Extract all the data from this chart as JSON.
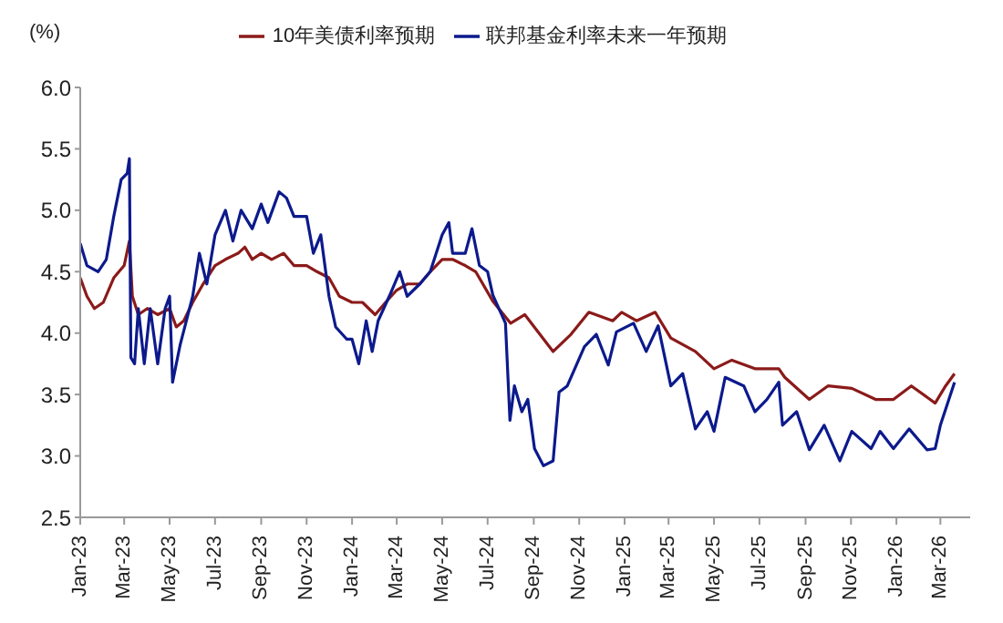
{
  "chart_data": {
    "type": "line",
    "ylabel": "(%)",
    "legend": "top",
    "line_style": "solid",
    "marker": "none",
    "xlim": [
      "2023-01-01",
      "2026-04-10"
    ],
    "xticks": [
      {
        "value": "2023-01-01",
        "label": "Jan-23"
      },
      {
        "value": "2023-03-01",
        "label": "Mar-23"
      },
      {
        "value": "2023-05-01",
        "label": "May-23"
      },
      {
        "value": "2023-07-01",
        "label": "Jul-23"
      },
      {
        "value": "2023-09-01",
        "label": "Sep-23"
      },
      {
        "value": "2023-11-01",
        "label": "Nov-23"
      },
      {
        "value": "2024-01-01",
        "label": "Jan-24"
      },
      {
        "value": "2024-03-01",
        "label": "Mar-24"
      },
      {
        "value": "2024-05-01",
        "label": "May-24"
      },
      {
        "value": "2024-07-01",
        "label": "Jul-24"
      },
      {
        "value": "2024-09-01",
        "label": "Sep-24"
      },
      {
        "value": "2024-11-01",
        "label": "Nov-24"
      },
      {
        "value": "2025-01-01",
        "label": "Jan-25"
      },
      {
        "value": "2025-03-01",
        "label": "Mar-25"
      },
      {
        "value": "2025-05-01",
        "label": "May-25"
      },
      {
        "value": "2025-07-01",
        "label": "Jul-25"
      },
      {
        "value": "2025-09-01",
        "label": "Sep-25"
      },
      {
        "value": "2025-11-01",
        "label": "Nov-25"
      },
      {
        "value": "2026-01-01",
        "label": "Jan-26"
      },
      {
        "value": "2026-03-01",
        "label": "Mar-26"
      }
    ],
    "ylim": [
      2.5,
      6.0
    ],
    "yticks": [
      {
        "value": 2.5,
        "label": "2.5"
      },
      {
        "value": 3.0,
        "label": "3.0"
      },
      {
        "value": 3.5,
        "label": "3.5"
      },
      {
        "value": 4.0,
        "label": "4.0"
      },
      {
        "value": 4.5,
        "label": "4.5"
      },
      {
        "value": 5.0,
        "label": "5.0"
      },
      {
        "value": 5.5,
        "label": "5.5"
      },
      {
        "value": 6.0,
        "label": "6.0"
      }
    ],
    "series": [
      {
        "name": "10年美债利率预期",
        "color": "#8b1a1a",
        "x": [
          "2023-01-01",
          "2023-01-10",
          "2023-01-20",
          "2023-02-01",
          "2023-02-15",
          "2023-03-01",
          "2023-03-08",
          "2023-03-12",
          "2023-03-20",
          "2023-04-01",
          "2023-04-15",
          "2023-05-01",
          "2023-05-10",
          "2023-05-20",
          "2023-06-01",
          "2023-06-15",
          "2023-07-01",
          "2023-07-15",
          "2023-08-01",
          "2023-08-10",
          "2023-08-20",
          "2023-09-01",
          "2023-09-15",
          "2023-10-01",
          "2023-10-15",
          "2023-11-01",
          "2023-11-15",
          "2023-12-01",
          "2023-12-15",
          "2024-01-01",
          "2024-01-15",
          "2024-02-01",
          "2024-02-15",
          "2024-03-01",
          "2024-03-15",
          "2024-04-01",
          "2024-04-15",
          "2024-05-01",
          "2024-05-15",
          "2024-06-01",
          "2024-06-15",
          "2024-07-08",
          "2024-08-01",
          "2024-08-20",
          "2024-09-27",
          "2024-10-21",
          "2024-11-14",
          "2024-12-16",
          "2024-12-28",
          "2025-01-17",
          "2025-02-11",
          "2025-03-04",
          "2025-04-06",
          "2025-05-01",
          "2025-05-25",
          "2025-06-25",
          "2025-07-27",
          "2025-08-04",
          "2025-09-06",
          "2025-10-01",
          "2025-11-02",
          "2025-12-04",
          "2025-12-28",
          "2026-01-21",
          "2026-02-22",
          "2026-03-08",
          "2026-03-20"
        ],
        "values": [
          4.45,
          4.3,
          4.2,
          4.25,
          4.45,
          4.55,
          4.75,
          4.3,
          4.15,
          4.2,
          4.15,
          4.2,
          4.05,
          4.1,
          4.25,
          4.4,
          4.55,
          4.6,
          4.65,
          4.7,
          4.6,
          4.65,
          4.6,
          4.65,
          4.55,
          4.55,
          4.5,
          4.45,
          4.3,
          4.25,
          4.25,
          4.15,
          4.25,
          4.35,
          4.4,
          4.4,
          4.5,
          4.6,
          4.6,
          4.55,
          4.5,
          4.26,
          4.08,
          4.15,
          3.85,
          3.99,
          4.17,
          4.1,
          4.17,
          4.1,
          4.17,
          3.96,
          3.85,
          3.71,
          3.78,
          3.71,
          3.71,
          3.64,
          3.46,
          3.57,
          3.55,
          3.46,
          3.46,
          3.57,
          3.43,
          3.57,
          3.67
        ]
      },
      {
        "name": "联邦基金利率未来一年预期",
        "color": "#0c1a8c",
        "x": [
          "2023-01-01",
          "2023-01-10",
          "2023-01-25",
          "2023-02-05",
          "2023-02-15",
          "2023-02-25",
          "2023-03-05",
          "2023-03-08",
          "2023-03-10",
          "2023-03-15",
          "2023-03-20",
          "2023-03-28",
          "2023-04-05",
          "2023-04-15",
          "2023-04-25",
          "2023-05-01",
          "2023-05-05",
          "2023-05-15",
          "2023-06-01",
          "2023-06-10",
          "2023-06-20",
          "2023-07-01",
          "2023-07-15",
          "2023-07-25",
          "2023-08-05",
          "2023-08-20",
          "2023-09-01",
          "2023-09-10",
          "2023-09-25",
          "2023-10-05",
          "2023-10-15",
          "2023-11-01",
          "2023-11-10",
          "2023-11-20",
          "2023-12-01",
          "2023-12-10",
          "2023-12-25",
          "2024-01-01",
          "2024-01-10",
          "2024-01-20",
          "2024-01-28",
          "2024-02-05",
          "2024-02-20",
          "2024-03-05",
          "2024-03-15",
          "2024-04-01",
          "2024-04-15",
          "2024-05-01",
          "2024-05-10",
          "2024-05-15",
          "2024-06-01",
          "2024-06-10",
          "2024-06-20",
          "2024-07-01",
          "2024-07-08",
          "2024-07-25",
          "2024-07-31",
          "2024-08-06",
          "2024-08-16",
          "2024-08-24",
          "2024-09-02",
          "2024-09-14",
          "2024-09-27",
          "2024-10-05",
          "2024-10-16",
          "2024-11-08",
          "2024-11-24",
          "2024-12-10",
          "2024-12-21",
          "2025-01-13",
          "2025-01-30",
          "2025-02-15",
          "2025-03-04",
          "2025-03-20",
          "2025-04-06",
          "2025-04-22",
          "2025-05-01",
          "2025-05-16",
          "2025-06-10",
          "2025-06-25",
          "2025-07-11",
          "2025-07-27",
          "2025-08-01",
          "2025-08-20",
          "2025-09-06",
          "2025-09-26",
          "2025-10-17",
          "2025-11-02",
          "2025-11-28",
          "2025-12-10",
          "2025-12-28",
          "2026-01-18",
          "2026-02-11",
          "2026-02-22",
          "2026-03-01",
          "2026-03-20"
        ],
        "values": [
          4.73,
          4.55,
          4.5,
          4.6,
          4.95,
          5.25,
          5.3,
          5.42,
          3.8,
          3.75,
          4.2,
          3.75,
          4.2,
          3.75,
          4.2,
          4.3,
          3.6,
          3.9,
          4.3,
          4.65,
          4.4,
          4.8,
          5.0,
          4.75,
          5.0,
          4.85,
          5.05,
          4.9,
          5.15,
          5.1,
          4.95,
          4.95,
          4.65,
          4.8,
          4.3,
          4.05,
          3.95,
          3.95,
          3.75,
          4.1,
          3.85,
          4.1,
          4.3,
          4.5,
          4.3,
          4.4,
          4.5,
          4.8,
          4.9,
          4.65,
          4.65,
          4.85,
          4.55,
          4.5,
          4.31,
          4.08,
          3.29,
          3.57,
          3.36,
          3.46,
          3.06,
          2.92,
          2.96,
          3.52,
          3.57,
          3.89,
          3.99,
          3.74,
          4.01,
          4.08,
          3.85,
          4.06,
          3.57,
          3.67,
          3.22,
          3.36,
          3.2,
          3.64,
          3.57,
          3.36,
          3.46,
          3.6,
          3.25,
          3.36,
          3.05,
          3.25,
          2.96,
          3.2,
          3.06,
          3.2,
          3.06,
          3.22,
          3.05,
          3.06,
          3.25,
          3.6
        ]
      }
    ]
  }
}
